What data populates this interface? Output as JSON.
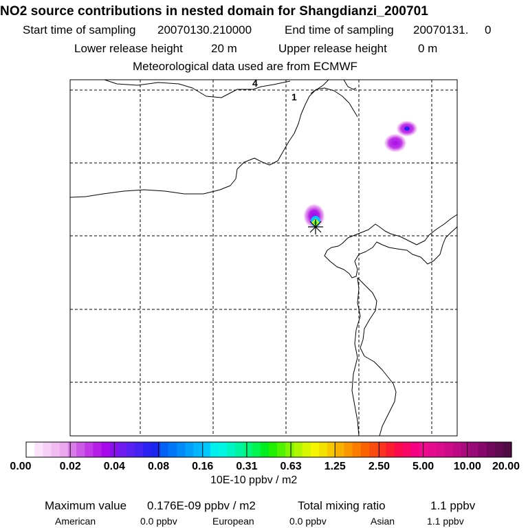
{
  "title": "NO2 source contributions in nested domain for Shangdianzi_200701",
  "sampling": {
    "start_label": "Start time of sampling",
    "start_value": "20070130.210000",
    "end_label": "End time of sampling",
    "end_value": "20070131.     0"
  },
  "release": {
    "lower_label": "Lower release height",
    "lower_value": "20 m",
    "upper_label": "Upper release height",
    "upper_value": "0 m"
  },
  "meteo_line": "Meteorological data used are from ECMWF",
  "map": {
    "region_labels": [
      "4",
      "1"
    ],
    "receptor_marker": "Shangdianzi receptor",
    "colors": {
      "coast": "#000000",
      "grid": "#000000"
    }
  },
  "colorbar": {
    "tick_labels": [
      "0.00",
      "0.02",
      "0.04",
      "0.08",
      "0.16",
      "0.31",
      "0.63",
      "1.25",
      "2.50",
      "5.00",
      "10.00",
      "20.00"
    ],
    "tick_values": [
      0.0,
      0.02,
      0.04,
      0.08,
      0.16,
      0.31,
      0.63,
      1.25,
      2.5,
      5.0,
      10.0,
      20.0
    ],
    "colors": [
      "#ffffff",
      "#fbe4fb",
      "#f7d0f7",
      "#f2bcf2",
      "#eca8ee",
      "#d97de9",
      "#cc5ae7",
      "#c23ae7",
      "#b71ee8",
      "#a70aea",
      "#8a10ee",
      "#701cf0",
      "#5a22f2",
      "#4422f2",
      "#2a22f2",
      "#1a26ef",
      "#0062f7",
      "#0076f8",
      "#008bf9",
      "#00a0fa",
      "#00b5fb",
      "#00c8fc",
      "#00eeee",
      "#00f5e2",
      "#00f5c4",
      "#00f5a0",
      "#00f57a",
      "#00f550",
      "#00ee20",
      "#20f000",
      "#50f200",
      "#80f400",
      "#b0f600",
      "#d8f600",
      "#f5f500",
      "#f5e100",
      "#f7c800",
      "#f8b000",
      "#fa9600",
      "#fb7c00",
      "#fb6400",
      "#fb4c10",
      "#fb3420",
      "#fb1c30",
      "#fa0a4a",
      "#f80866",
      "#f50082",
      "#f00a8e",
      "#e60c8e",
      "#db0c8c",
      "#cc0a88",
      "#bb0a84",
      "#aa0a7e",
      "#980a76",
      "#86086a",
      "#72085c",
      "#600a50",
      "#500a44"
    ],
    "unit_label": "10E-10 ppbv / m2"
  },
  "summary": {
    "max_label": "Maximum value",
    "max_value": "0.176E-09 ppbv / m2",
    "total_label": "Total mixing ratio",
    "total_value": "1.1 ppbv",
    "american_label": "American",
    "american_value": "0.0 ppbv",
    "european_label": "European",
    "european_value": "0.0 ppbv",
    "asian_label": "Asian",
    "asian_value": "1.1 ppbv"
  }
}
